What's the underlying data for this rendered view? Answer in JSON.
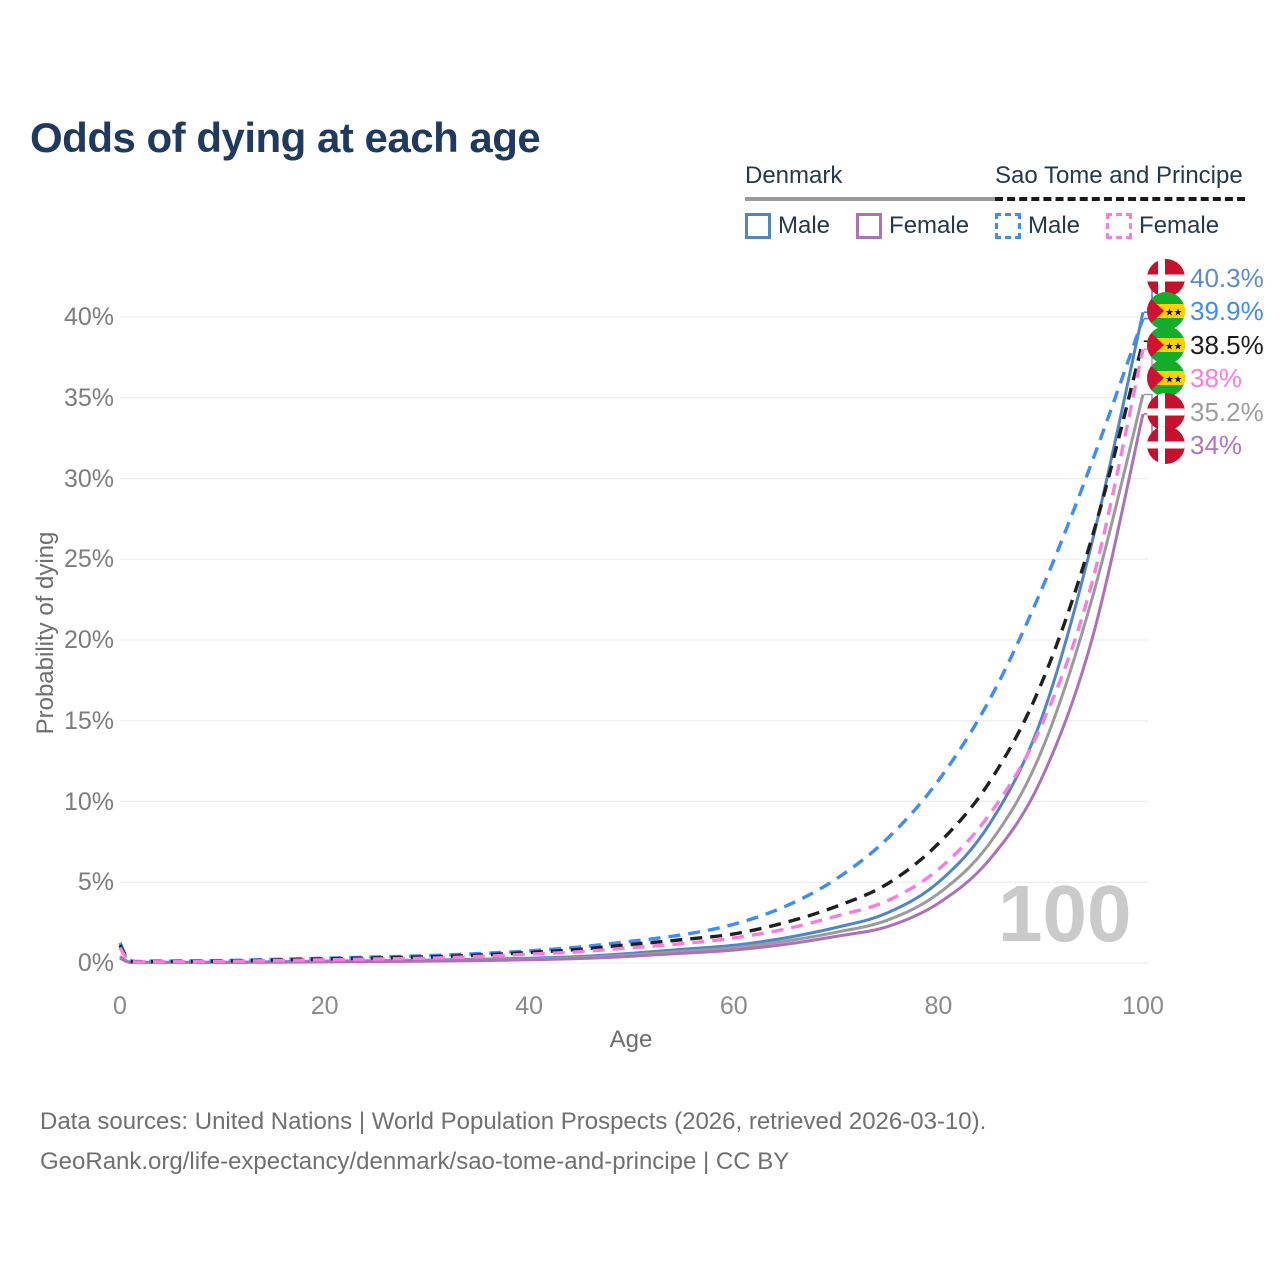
{
  "title": "Odds of dying at each age",
  "legend": {
    "groups": [
      {
        "label": "Denmark",
        "line_style": "solid",
        "underline_color": "#9a9a9a",
        "items": [
          {
            "label": "Male",
            "color": "#5085c6"
          },
          {
            "label": "Female",
            "color": "#ad71ba"
          }
        ]
      },
      {
        "label": "Sao Tome and Principe",
        "line_style": "dashed",
        "underline_color": "#1a1a1a",
        "items": [
          {
            "label": "Male",
            "color": "#3d8df5"
          },
          {
            "label": "Female",
            "color": "#fb7ce1"
          }
        ]
      }
    ]
  },
  "watermark": "100",
  "footer": {
    "line1": "Data sources: United Nations | World Population Prospects (2026, retrieved 2026-03-10).",
    "line2": "GeoRank.org/life-expectancy/denmark/sao-tome-and-principe | CC BY"
  },
  "chart_data": {
    "type": "line",
    "title": "Odds of dying at each age",
    "xlabel": "Age",
    "ylabel": "Probability of dying",
    "x_ticks": [
      0,
      20,
      40,
      60,
      80,
      100
    ],
    "y_ticks": [
      "0%",
      "5%",
      "10%",
      "15%",
      "20%",
      "25%",
      "30%",
      "35%",
      "40%"
    ],
    "xlim": [
      0,
      100
    ],
    "ylim_pct": [
      0,
      43.5
    ],
    "grid": true,
    "legend_position": "top-right",
    "ages": [
      0,
      1,
      3,
      5,
      10,
      15,
      20,
      25,
      30,
      35,
      40,
      45,
      50,
      55,
      60,
      65,
      70,
      75,
      80,
      85,
      90,
      95,
      100
    ],
    "series": [
      {
        "id": "denmark-male",
        "country": "Denmark",
        "sex": "Male",
        "style": "solid",
        "color": "#5085c6",
        "label_color": "#5b8ad0",
        "flag": "dk",
        "end_label": "40.3%",
        "end_value": 40.3,
        "values_pct": [
          0.4,
          0.04,
          0.03,
          0.03,
          0.04,
          0.08,
          0.12,
          0.14,
          0.18,
          0.23,
          0.3,
          0.4,
          0.6,
          0.85,
          1.1,
          1.55,
          2.2,
          3.1,
          5.0,
          8.6,
          15.0,
          26.0,
          40.3
        ]
      },
      {
        "id": "denmark-all",
        "country": "Denmark",
        "sex": "All",
        "style": "solid",
        "color": "#9b9b9b",
        "label_color": "#9e9e9e",
        "flag": "dk",
        "end_label": "35.2%",
        "end_value": 35.2,
        "values_pct": [
          0.35,
          0.035,
          0.025,
          0.025,
          0.035,
          0.06,
          0.1,
          0.12,
          0.15,
          0.19,
          0.25,
          0.34,
          0.5,
          0.72,
          0.95,
          1.35,
          1.9,
          2.65,
          4.3,
          7.4,
          13.0,
          22.5,
          35.2
        ]
      },
      {
        "id": "denmark-female",
        "country": "Denmark",
        "sex": "Female",
        "style": "solid",
        "color": "#ad71ba",
        "label_color": "#b273c1",
        "flag": "dk",
        "end_label": "34%",
        "end_value": 34.0,
        "values_pct": [
          0.3,
          0.03,
          0.02,
          0.02,
          0.03,
          0.05,
          0.07,
          0.09,
          0.12,
          0.15,
          0.2,
          0.28,
          0.42,
          0.6,
          0.8,
          1.15,
          1.65,
          2.25,
          3.7,
          6.4,
          11.3,
          20.0,
          34.0
        ]
      },
      {
        "id": "stp-male",
        "country": "Sao Tome and Principe",
        "sex": "Male",
        "style": "dashed",
        "color": "#3d8df5",
        "label_color": "#3d8df5",
        "flag": "st",
        "end_label": "39.9%",
        "end_value": 39.9,
        "values_pct": [
          1.25,
          0.15,
          0.12,
          0.12,
          0.15,
          0.22,
          0.3,
          0.37,
          0.45,
          0.58,
          0.75,
          1.0,
          1.35,
          1.75,
          2.4,
          3.5,
          5.2,
          7.7,
          11.3,
          16.3,
          23.0,
          31.0,
          39.9
        ]
      },
      {
        "id": "stp-all",
        "country": "Sao Tome and Principe",
        "sex": "All",
        "style": "dashed",
        "color": "#202020",
        "label_color": "#1c1c1c",
        "flag": "st",
        "end_label": "38.5%",
        "end_value": 38.5,
        "values_pct": [
          1.1,
          0.12,
          0.1,
          0.1,
          0.12,
          0.18,
          0.25,
          0.31,
          0.38,
          0.48,
          0.65,
          0.85,
          1.15,
          1.45,
          1.8,
          2.5,
          3.5,
          4.9,
          7.4,
          11.2,
          17.2,
          26.3,
          38.5
        ]
      },
      {
        "id": "stp-female",
        "country": "Sao Tome and Principe",
        "sex": "Female",
        "style": "dashed",
        "color": "#fb7ce1",
        "label_color": "#fb7ce1",
        "flag": "st",
        "end_label": "38%",
        "end_value": 38.0,
        "values_pct": [
          0.95,
          0.1,
          0.08,
          0.08,
          0.1,
          0.15,
          0.2,
          0.25,
          0.3,
          0.4,
          0.55,
          0.7,
          0.95,
          1.2,
          1.55,
          2.1,
          2.9,
          3.85,
          5.8,
          9.2,
          14.6,
          23.5,
          38.0
        ]
      }
    ],
    "flag_colors": {
      "dk_red": "#c8102e",
      "dk_white": "#ffffff",
      "st_green": "#12ad2b",
      "st_yellow": "#ffd100",
      "st_red": "#d21034",
      "st_black": "#111111"
    }
  }
}
